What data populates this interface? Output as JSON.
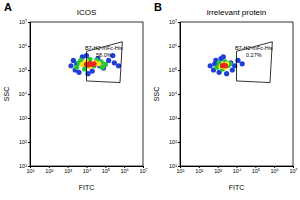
{
  "chart_data": [
    {
      "type": "scatter",
      "panel_label": "A",
      "title": "ICOS",
      "xlabel": "FITC",
      "ylabel": "SSC",
      "log": true,
      "xlim": [
        10,
        10000000
      ],
      "ylim": [
        10,
        10000000
      ],
      "xticks": [
        {
          "value": 10,
          "label": "10¹"
        },
        {
          "value": 100,
          "label": "10²"
        },
        {
          "value": 1000,
          "label": "10³"
        },
        {
          "value": 10000,
          "label": "10⁴"
        },
        {
          "value": 100000,
          "label": "10⁵"
        },
        {
          "value": 1000000,
          "label": "10⁶"
        },
        {
          "value": 10000000,
          "label": "10⁷"
        }
      ],
      "yticks": [
        {
          "value": 10,
          "label": "10¹"
        },
        {
          "value": 100,
          "label": "10²"
        },
        {
          "value": 1000,
          "label": "10³"
        },
        {
          "value": 10000,
          "label": "10⁴"
        },
        {
          "value": 100000,
          "label": "10⁵"
        },
        {
          "value": 1000000,
          "label": "10⁶"
        },
        {
          "value": 10000000,
          "label": "10⁷"
        }
      ],
      "series": [
        {
          "color": "#1f3fd6",
          "x": [
            1500,
            2000,
            2500,
            4000,
            6000,
            10000,
            20000,
            40000,
            80000,
            150000,
            300000,
            3000,
            12000,
            50000,
            250000,
            500000
          ],
          "values": [
            150000,
            250000,
            100000,
            80000,
            350000,
            400000,
            90000,
            300000,
            120000,
            250000,
            200000,
            180000,
            70000,
            150000,
            400000,
            150000
          ]
        },
        {
          "color": "#27c43b",
          "x": [
            3000,
            5000,
            8000,
            15000,
            25000,
            60000,
            100000,
            4000,
            35000,
            70000
          ],
          "values": [
            130000,
            250000,
            110000,
            280000,
            150000,
            220000,
            170000,
            200000,
            250000,
            130000
          ]
        },
        {
          "color": "#f2e21c",
          "x": [
            6000,
            10000,
            15000,
            30000,
            45000,
            8000
          ],
          "values": [
            170000,
            220000,
            140000,
            200000,
            180000,
            200000
          ]
        },
        {
          "color": "#e8281b",
          "x": [
            10000,
            15000,
            20000,
            25000,
            12000
          ],
          "values": [
            170000,
            190000,
            170000,
            180000,
            160000
          ]
        }
      ],
      "gate": {
        "label": "B7-H2-mFc-His",
        "percent": "58.0%",
        "x": [
          10000,
          600000,
          800000,
          10000
        ],
        "y": [
          35000,
          30000,
          1500000,
          600000
        ]
      }
    },
    {
      "type": "scatter",
      "panel_label": "B",
      "title": "irrelevant protein",
      "xlabel": "FITC",
      "ylabel": "SSC",
      "log": true,
      "xlim": [
        10,
        10000000
      ],
      "ylim": [
        10,
        10000000
      ],
      "xticks": [
        {
          "value": 10,
          "label": "10¹"
        },
        {
          "value": 100,
          "label": "10²"
        },
        {
          "value": 1000,
          "label": "10³"
        },
        {
          "value": 10000,
          "label": "10⁴"
        },
        {
          "value": 100000,
          "label": "10⁵"
        },
        {
          "value": 1000000,
          "label": "10⁶"
        },
        {
          "value": 10000000,
          "label": "10⁷"
        }
      ],
      "yticks": [
        {
          "value": 10,
          "label": "10¹"
        },
        {
          "value": 100,
          "label": "10²"
        },
        {
          "value": 1000,
          "label": "10³"
        },
        {
          "value": 10000,
          "label": "10⁴"
        },
        {
          "value": 100000,
          "label": "10⁵"
        },
        {
          "value": 1000000,
          "label": "10⁶"
        },
        {
          "value": 10000000,
          "label": "10⁷"
        }
      ],
      "series": [
        {
          "color": "#1f3fd6",
          "x": [
            400,
            600,
            800,
            1200,
            1500,
            3000,
            5000,
            8000,
            12000,
            700,
            2000,
            6000,
            20000
          ],
          "values": [
            150000,
            100000,
            250000,
            80000,
            300000,
            70000,
            200000,
            150000,
            250000,
            180000,
            350000,
            100000,
            180000
          ]
        },
        {
          "color": "#27c43b",
          "x": [
            900,
            1200,
            1800,
            2500,
            3500,
            4500,
            1500
          ],
          "values": [
            130000,
            200000,
            110000,
            220000,
            150000,
            180000,
            160000
          ]
        },
        {
          "color": "#f2e21c",
          "x": [
            1500,
            2000,
            3000,
            2500
          ],
          "values": [
            140000,
            170000,
            180000,
            130000
          ]
        },
        {
          "color": "#e8281b",
          "x": [
            1800,
            2200,
            2600
          ],
          "values": [
            150000,
            160000,
            150000
          ]
        }
      ],
      "gate": {
        "label": "B7-H2-mFc-His",
        "percent": "0.27%",
        "x": [
          10000,
          600000,
          800000,
          10000
        ],
        "y": [
          35000,
          30000,
          1500000,
          600000
        ]
      }
    }
  ]
}
